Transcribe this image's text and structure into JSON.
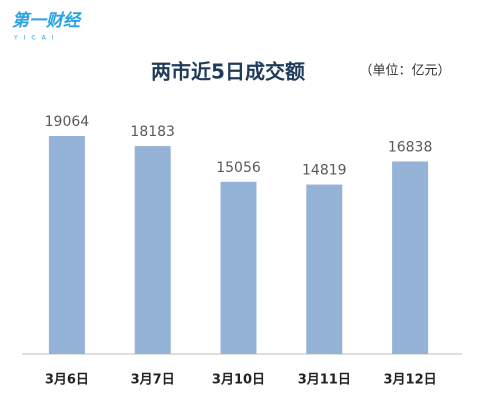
{
  "logo": {
    "text": "第一财经",
    "subtext": "YICAI"
  },
  "chart_data": {
    "type": "bar",
    "title": "两市近5日成交额",
    "subtitle": "（单位：亿元）",
    "categories": [
      "3月6日",
      "3月7日",
      "3月10日",
      "3月11日",
      "3月12日"
    ],
    "values": [
      19064,
      18183,
      15056,
      14819,
      16838
    ],
    "color": "#95b3d7"
  }
}
